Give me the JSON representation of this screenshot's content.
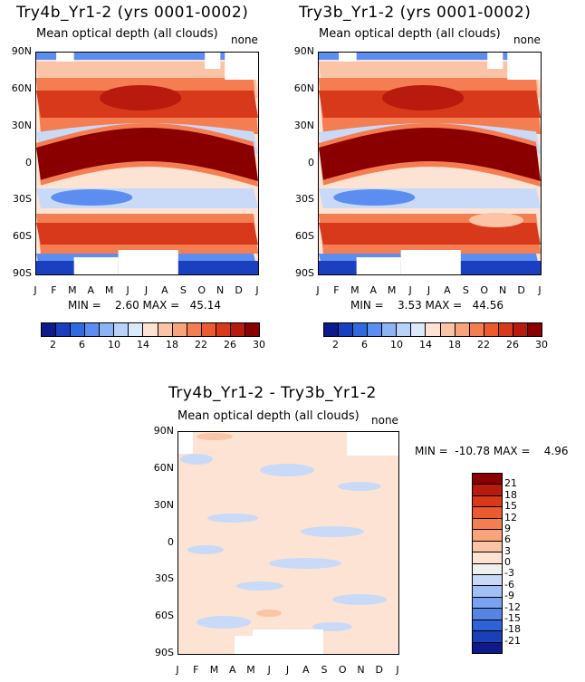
{
  "chart_data": [
    {
      "type": "heatmap",
      "title": "Try4b_Yr1-2 (yrs 0001-0002)",
      "subtitle": "Mean optical depth (all clouds)",
      "corner_label": "none",
      "x_ticks": [
        "J",
        "F",
        "M",
        "A",
        "M",
        "J",
        "J",
        "A",
        "S",
        "O",
        "N",
        "D",
        "J"
      ],
      "y_ticks": [
        "90N",
        "60N",
        "30N",
        "0",
        "30S",
        "60S",
        "90S"
      ],
      "stats": "MIN =    2.60 MAX =   45.14",
      "min": 2.6,
      "max": 45.14,
      "colorbar_labels": [
        "2",
        "6",
        "10",
        "14",
        "18",
        "22",
        "26",
        "30"
      ],
      "colorbar_colors": [
        "#0d1a8c",
        "#1a3fbf",
        "#2f6ae0",
        "#5b8ef0",
        "#8db3f7",
        "#b9d2fa",
        "#dce9fc",
        "#fde3d4",
        "#fcc4a6",
        "#f9a37b",
        "#f57d52",
        "#ec5a2f",
        "#d9391b",
        "#b81a0d",
        "#8a0000"
      ]
    },
    {
      "type": "heatmap",
      "title": "Try3b_Yr1-2 (yrs 0001-0002)",
      "subtitle": "Mean optical depth (all clouds)",
      "corner_label": "none",
      "x_ticks": [
        "J",
        "F",
        "M",
        "A",
        "M",
        "J",
        "J",
        "A",
        "S",
        "O",
        "N",
        "D",
        "J"
      ],
      "y_ticks": [
        "90N",
        "60N",
        "30N",
        "0",
        "30S",
        "60S",
        "90S"
      ],
      "stats": "MIN =    3.53 MAX =   44.56",
      "min": 3.53,
      "max": 44.56,
      "colorbar_labels": [
        "2",
        "6",
        "10",
        "14",
        "18",
        "22",
        "26",
        "30"
      ],
      "colorbar_colors": [
        "#0d1a8c",
        "#1a3fbf",
        "#2f6ae0",
        "#5b8ef0",
        "#8db3f7",
        "#b9d2fa",
        "#dce9fc",
        "#fde3d4",
        "#fcc4a6",
        "#f9a37b",
        "#f57d52",
        "#ec5a2f",
        "#d9391b",
        "#b81a0d",
        "#8a0000"
      ]
    },
    {
      "type": "heatmap",
      "title": "Try4b_Yr1-2 - Try3b_Yr1-2",
      "subtitle": "Mean optical depth (all clouds)",
      "corner_label": "none",
      "x_ticks": [
        "J",
        "F",
        "M",
        "A",
        "M",
        "J",
        "J",
        "A",
        "S",
        "O",
        "N",
        "D",
        "J"
      ],
      "y_ticks": [
        "90N",
        "60N",
        "30N",
        "0",
        "30S",
        "60S",
        "90S"
      ],
      "stats": "MIN =  -10.78 MAX =    4.96",
      "min": -10.78,
      "max": 4.96,
      "colorbar_labels": [
        "21",
        "18",
        "15",
        "12",
        "9",
        "6",
        "3",
        "0",
        "-3",
        "-6",
        "-9",
        "-12",
        "-15",
        "-18",
        "-21"
      ],
      "colorbar_colors": [
        "#8a0000",
        "#b81a0d",
        "#d9391b",
        "#ec5a2f",
        "#f57d52",
        "#f9a37b",
        "#fcc4a6",
        "#fde3d4",
        "#f0f0f0",
        "#c8daf8",
        "#a2c0f5",
        "#7aa2ee",
        "#5584e4",
        "#2f62d6",
        "#1a40b8",
        "#0d1a8c"
      ]
    }
  ],
  "colors": {
    "dark_red": "#8a0000",
    "red": "#d9391b",
    "orange": "#f57d52",
    "light_orange": "#fcc4a6",
    "pale": "#fde3d4",
    "light_blue": "#c8daf8",
    "blue": "#5b8ef0",
    "dark_blue": "#1a3fbf"
  }
}
